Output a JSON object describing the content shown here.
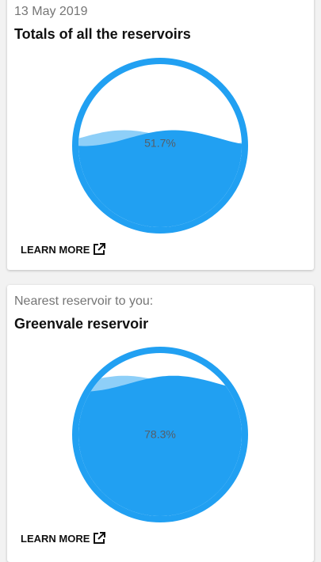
{
  "colors": {
    "water": "#21a0f2",
    "wave_light": "#8ecff8",
    "ring": "#21a0f2"
  },
  "cards": [
    {
      "subtitle": "13 May 2019",
      "title": "Totals of all the reservoirs",
      "fill_percent": 51.7,
      "percent_label": "51.7%",
      "learn_more": "LEARN MORE",
      "link_icon": "external-link-icon"
    },
    {
      "subtitle": "Nearest reservoir to you:",
      "title": "Greenvale reservoir",
      "fill_percent": 78.3,
      "percent_label": "78.3%",
      "learn_more": "LEARN MORE",
      "link_icon": "external-link-icon"
    }
  ]
}
